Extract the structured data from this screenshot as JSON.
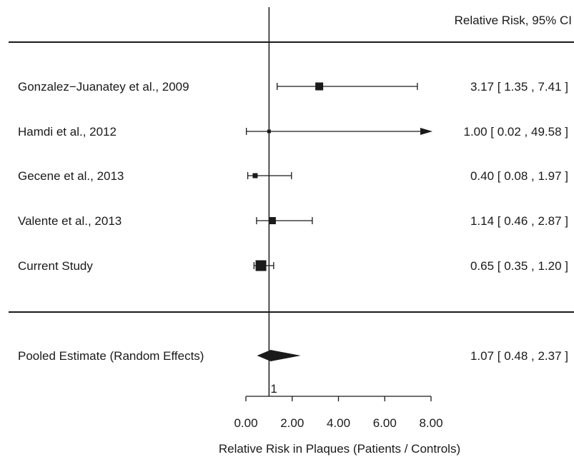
{
  "chart_data": {
    "type": "forest",
    "column_header": "Relative Risk, 95% CI",
    "xlabel": "Relative Risk in Plaques (Patients / Controls)",
    "xlim": [
      0,
      8
    ],
    "xticks": [
      0,
      2,
      4,
      6,
      8
    ],
    "xtick_labels": [
      "0.00",
      "2.00",
      "4.00",
      "6.00",
      "8.00"
    ],
    "reference_line": {
      "x": 1,
      "label": "1"
    },
    "studies": [
      {
        "name": "Gonzalez−Juanatey et al., 2009",
        "rr": 3.17,
        "lower": 1.35,
        "upper": 7.41,
        "ci_text": "3.17 [ 1.35 ,  7.41 ]",
        "arrow_right": false
      },
      {
        "name": "Hamdi et al., 2012",
        "rr": 1.0,
        "lower": 0.02,
        "upper": 49.58,
        "ci_text": "1.00 [ 0.02 , 49.58 ]",
        "arrow_right": true
      },
      {
        "name": "Gecene et al., 2013",
        "rr": 0.4,
        "lower": 0.08,
        "upper": 1.97,
        "ci_text": "0.40 [ 0.08 ,  1.97 ]",
        "arrow_right": false
      },
      {
        "name": "Valente et al., 2013",
        "rr": 1.14,
        "lower": 0.46,
        "upper": 2.87,
        "ci_text": "1.14 [ 0.46 ,  2.87 ]",
        "arrow_right": false
      },
      {
        "name": "Current Study",
        "rr": 0.65,
        "lower": 0.35,
        "upper": 1.2,
        "ci_text": "0.65 [ 0.35 ,  1.20 ]",
        "arrow_right": false
      }
    ],
    "pooled": {
      "name": "Pooled Estimate (Random Effects)",
      "rr": 1.07,
      "lower": 0.48,
      "upper": 2.37,
      "ci_text": "1.07 [ 0.48 ,  2.37 ]"
    }
  }
}
